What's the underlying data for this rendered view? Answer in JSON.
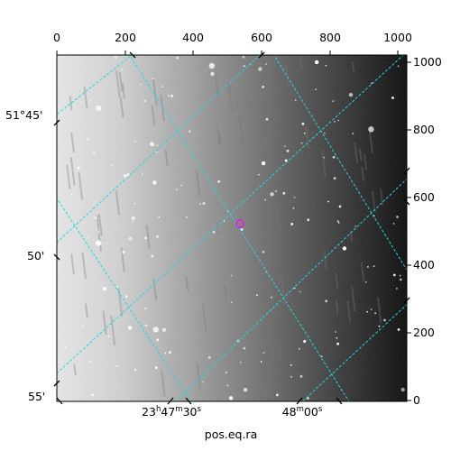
{
  "image": {
    "subject": "astronomical CCD frame, grayscale, with celestial coordinate grid overlay",
    "colors": {
      "grid": "#22d6e0",
      "marker": "#ff00ff",
      "frame": "#000000"
    }
  },
  "axes": {
    "x_label": "pos.eq.ra",
    "top_ticks": [
      "0",
      "200",
      "400",
      "600",
      "800",
      "1000"
    ],
    "right_ticks": [
      "0",
      "200",
      "400",
      "600",
      "800",
      "1000"
    ],
    "left_ticks": [
      "51°45'",
      "50'",
      "55'"
    ],
    "bottom_ticks": [
      {
        "h": "23",
        "hs": "h",
        "m": "47",
        "ms": "m",
        "s": "30",
        "ss": "s"
      },
      {
        "m": "48",
        "ms": "m",
        "s": "00",
        "ss": "s"
      }
    ]
  }
}
